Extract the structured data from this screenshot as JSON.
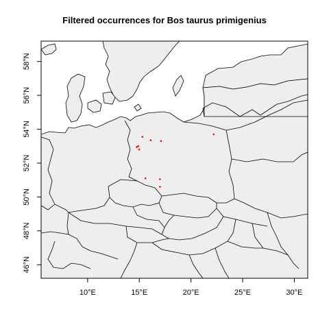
{
  "title": "Filtered occurrences for Bos taurus primigenius",
  "map": {
    "lon_range": [
      5.5,
      31.3
    ],
    "lat_range": [
      45.2,
      59.2
    ],
    "land_color": "#eeeeee",
    "sea_color": "#ffffff",
    "border_color": "#000000",
    "point_color": "#ff0000",
    "x_ticks": [
      {
        "value": 10,
        "label": "10°E"
      },
      {
        "value": 15,
        "label": "15°E"
      },
      {
        "value": 20,
        "label": "20°E"
      },
      {
        "value": 25,
        "label": "25°E"
      },
      {
        "value": 30,
        "label": "30°E"
      }
    ],
    "y_ticks": [
      {
        "value": 46,
        "label": "46°N"
      },
      {
        "value": 48,
        "label": "48°N"
      },
      {
        "value": 50,
        "label": "50°N"
      },
      {
        "value": 52,
        "label": "52°N"
      },
      {
        "value": 54,
        "label": "54°N"
      },
      {
        "value": 56,
        "label": "56°N"
      },
      {
        "value": 58,
        "label": "58°N"
      }
    ],
    "occurrences": [
      {
        "lon": 15.3,
        "lat": 53.55
      },
      {
        "lon": 16.1,
        "lat": 53.35
      },
      {
        "lon": 17.1,
        "lat": 53.3
      },
      {
        "lon": 22.2,
        "lat": 53.7
      },
      {
        "lon": 14.9,
        "lat": 53.0
      },
      {
        "lon": 15.0,
        "lat": 52.8
      },
      {
        "lon": 14.75,
        "lat": 52.95
      },
      {
        "lon": 15.6,
        "lat": 51.1
      },
      {
        "lon": 17.0,
        "lat": 51.05
      },
      {
        "lon": 17.0,
        "lat": 50.6
      }
    ]
  }
}
